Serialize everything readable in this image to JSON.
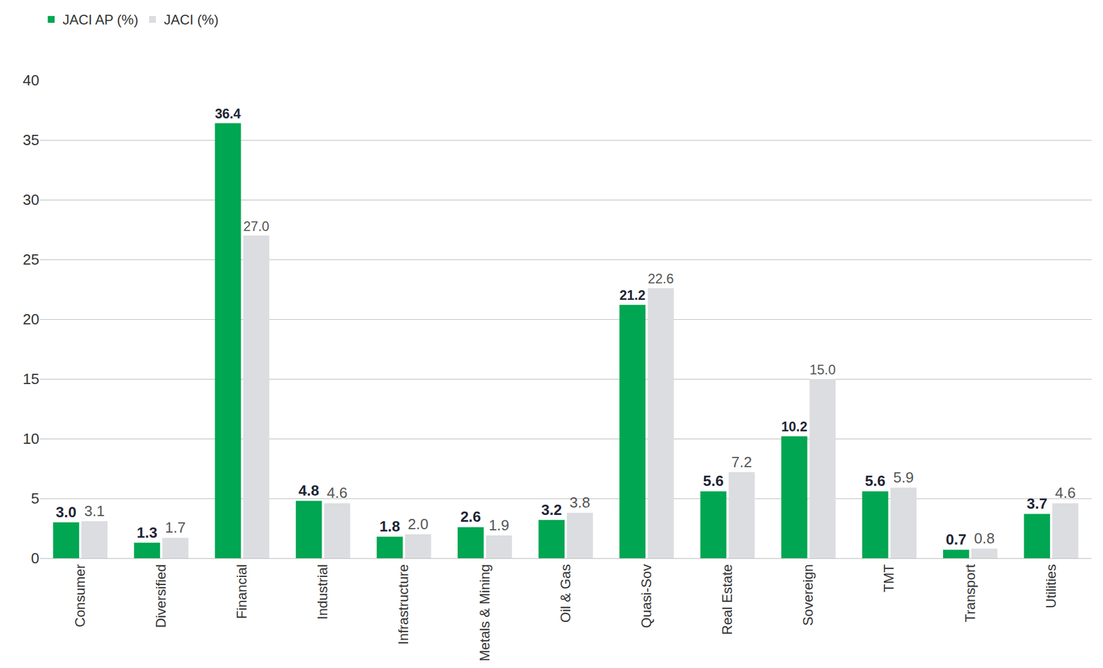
{
  "chart_data": {
    "type": "bar",
    "categories": [
      "Consumer",
      "Diversified",
      "Financial",
      "Industrial",
      "Infrastructure",
      "Metals & Mining",
      "Oil & Gas",
      "Quasi-Sov",
      "Real Estate",
      "Sovereign",
      "TMT",
      "Transport",
      "Utilities"
    ],
    "series": [
      {
        "name": "JACI AP (%)",
        "color": "#00a651",
        "values": [
          3.0,
          1.3,
          36.4,
          4.8,
          1.8,
          2.6,
          3.2,
          21.2,
          5.6,
          10.2,
          5.6,
          0.7,
          3.7
        ],
        "value_labels": [
          "3.0",
          "1.3",
          "36.4",
          "4.8",
          "1.8",
          "2.6",
          "3.2",
          "21.2",
          "5.6",
          "10.2",
          "5.6",
          "0.7",
          "3.7"
        ]
      },
      {
        "name": "JACI (%)",
        "color": "#dcdde1",
        "values": [
          3.1,
          1.7,
          27.0,
          4.6,
          2.0,
          1.9,
          3.8,
          22.6,
          7.2,
          15.0,
          5.9,
          0.8,
          4.6
        ],
        "value_labels": [
          "3.1",
          "1.7",
          "27.0",
          "4.6",
          "2.0",
          "1.9",
          "3.8",
          "22.6",
          "7.2",
          "15.0",
          "5.9",
          "0.8",
          "4.6"
        ]
      }
    ],
    "ylim": [
      0,
      40
    ],
    "yticks": [
      0,
      5,
      10,
      15,
      20,
      25,
      30,
      35,
      40
    ],
    "grid": true,
    "legend": "top-left",
    "data_labels": true
  }
}
